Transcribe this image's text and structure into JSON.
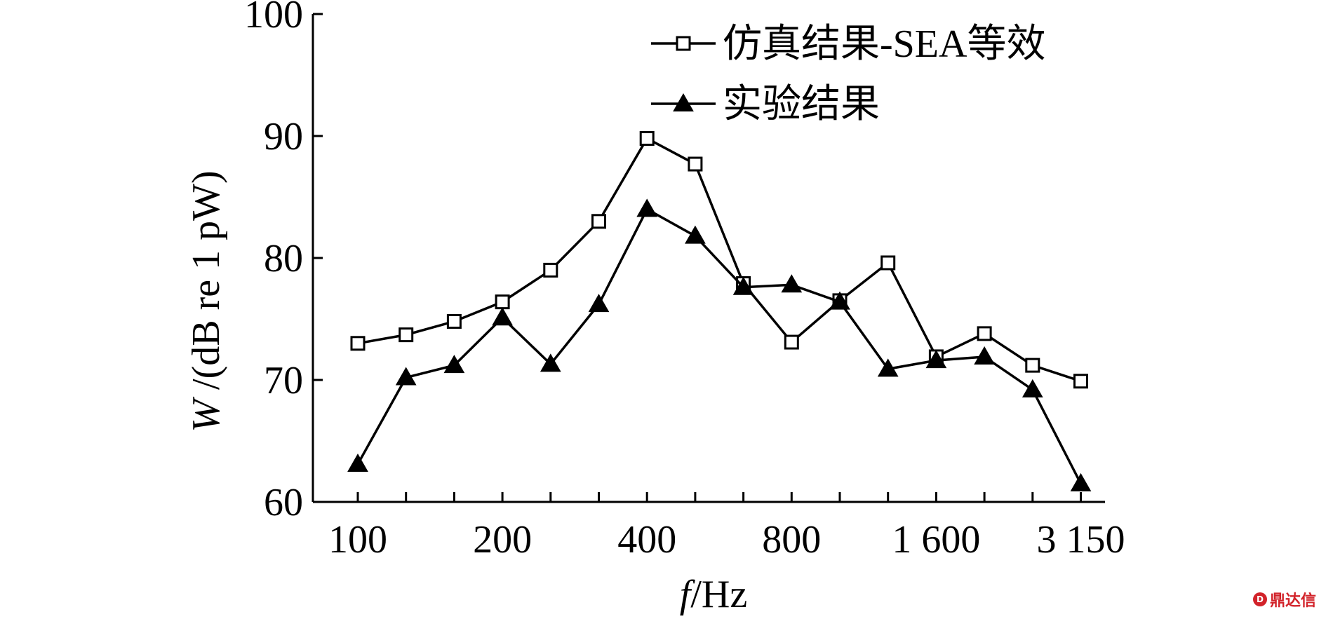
{
  "chart_data": {
    "type": "line",
    "x": [
      "100",
      "125",
      "160",
      "200",
      "250",
      "315",
      "400",
      "500",
      "630",
      "800",
      "1 000",
      "1 250",
      "1 600",
      "2 000",
      "2 500",
      "3 150"
    ],
    "x_tick_labels": [
      "100",
      "200",
      "400",
      "800",
      "1 600",
      "3 150"
    ],
    "ylabel_var": "W",
    "ylabel_rest": " /(dB re 1 pW)",
    "xlabel_var": "f",
    "xlabel_rest": "/Hz",
    "ylim": [
      60,
      100
    ],
    "y_ticks": [
      "60",
      "70",
      "80",
      "90",
      "100"
    ],
    "legend_position": "top-right",
    "grid": false,
    "series": [
      {
        "name": "仿真结果-SEA等效",
        "marker": "open-square",
        "color": "#000000",
        "values": [
          73.0,
          73.7,
          74.8,
          76.4,
          79.0,
          83.0,
          89.8,
          87.7,
          77.9,
          73.1,
          76.5,
          79.6,
          71.9,
          73.8,
          71.2,
          69.9
        ]
      },
      {
        "name": "实验结果",
        "marker": "filled-triangle",
        "color": "#000000",
        "values": [
          63.1,
          70.2,
          71.2,
          75.1,
          71.3,
          76.2,
          84.0,
          81.8,
          77.6,
          77.8,
          76.4,
          70.9,
          71.6,
          71.9,
          69.2,
          61.5
        ]
      }
    ]
  },
  "watermark": {
    "badge": "D",
    "text": "鼎达信"
  }
}
